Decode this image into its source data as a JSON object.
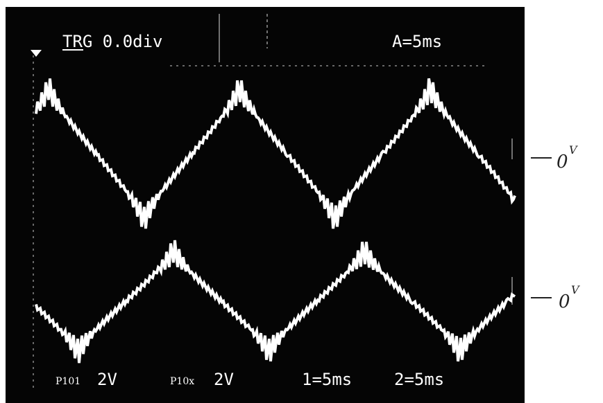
{
  "screen": {
    "trigger": "TRG 0.0div",
    "timebase": "A=5ms",
    "bottom": {
      "probe1": "P101",
      "volts1": "2V",
      "probe2": "P10x",
      "volts2": "2V",
      "time1": "1=5ms",
      "time2": "2=5ms"
    }
  },
  "annotations": [
    {
      "label": "0",
      "unit": "V"
    },
    {
      "label": "0",
      "unit": "V"
    }
  ]
}
